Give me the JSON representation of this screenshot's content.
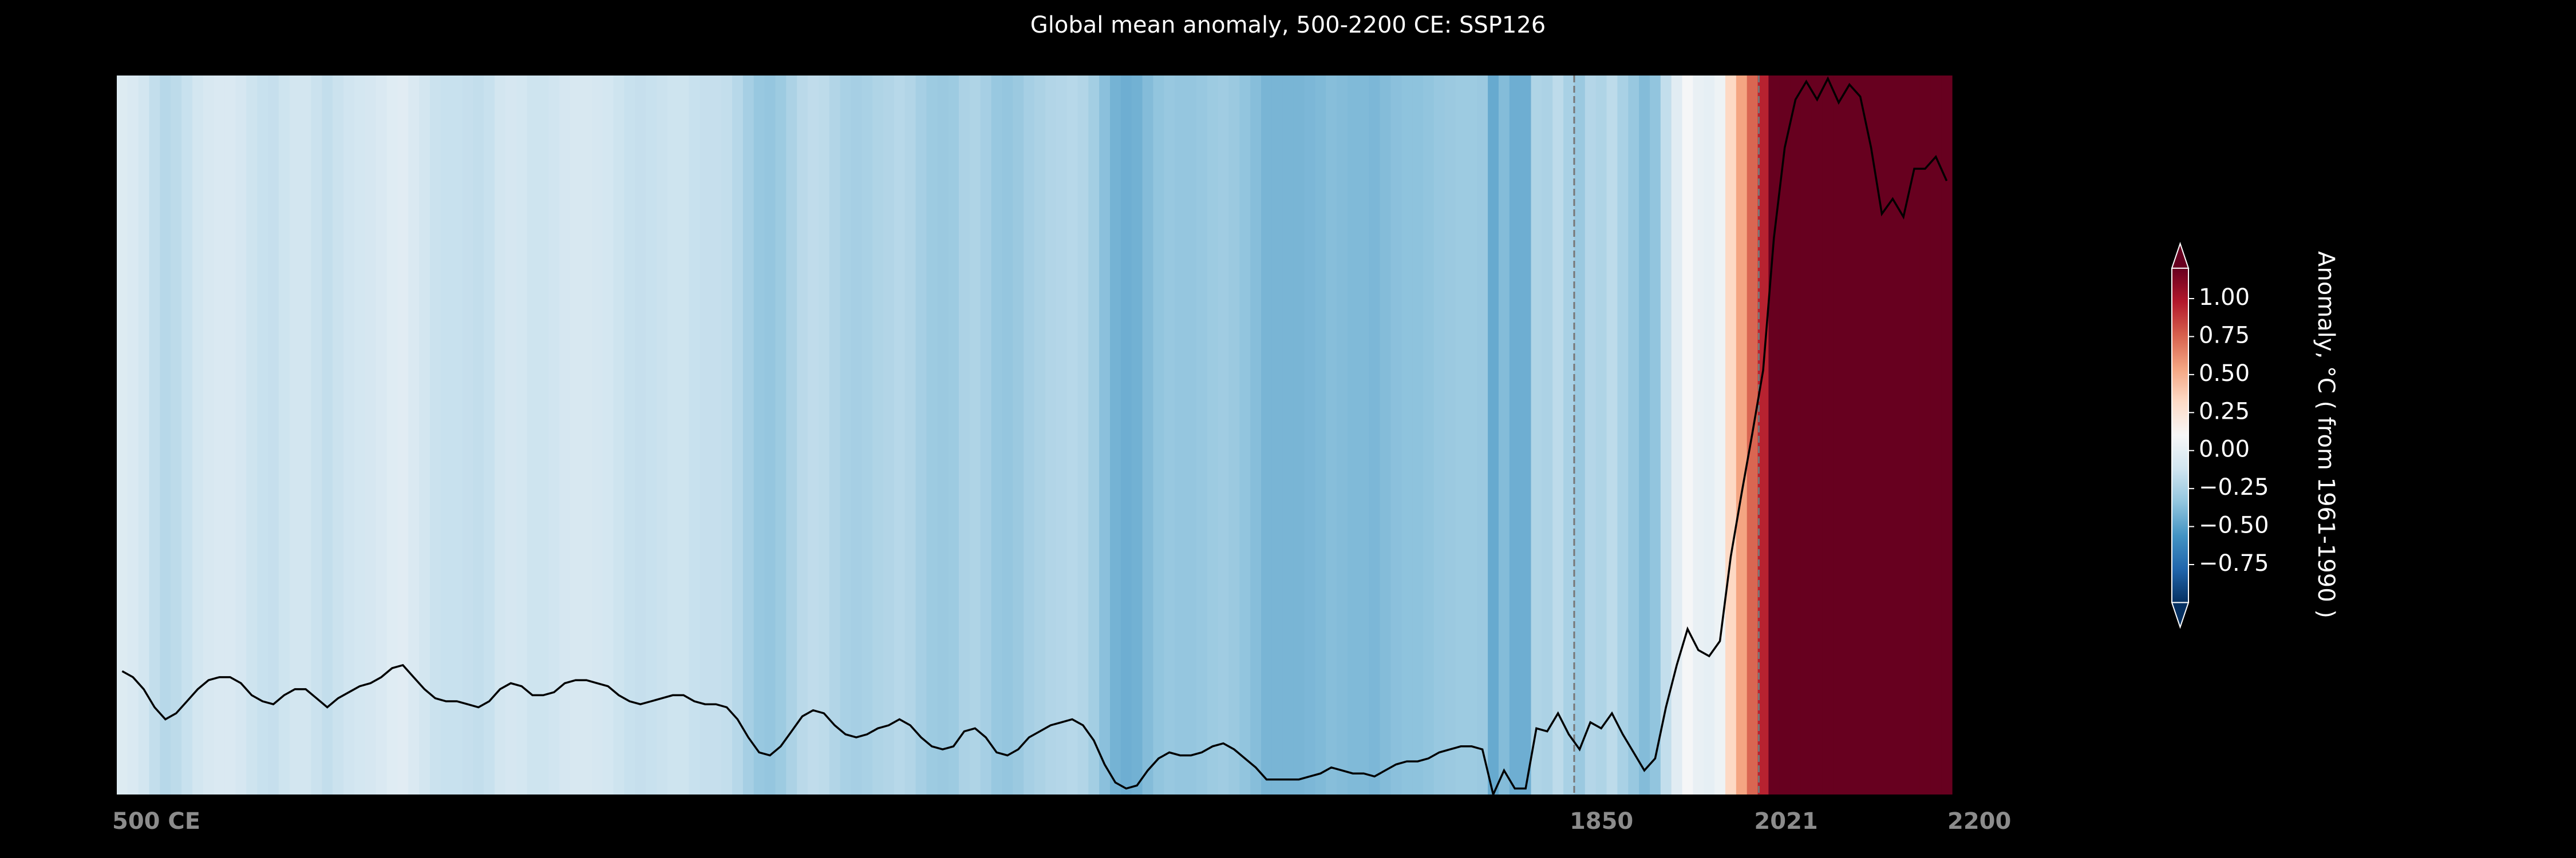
{
  "chart_data": {
    "type": "stripes-line",
    "title": "Global mean anomaly, 500-2200 CE: SSP126",
    "x": [
      505,
      515,
      525,
      535,
      545,
      555,
      565,
      575,
      585,
      595,
      605,
      615,
      625,
      635,
      645,
      655,
      665,
      675,
      685,
      695,
      705,
      715,
      725,
      735,
      745,
      755,
      765,
      775,
      785,
      795,
      805,
      815,
      825,
      835,
      845,
      855,
      865,
      875,
      885,
      895,
      905,
      915,
      925,
      935,
      945,
      955,
      965,
      975,
      985,
      995,
      1005,
      1015,
      1025,
      1035,
      1045,
      1055,
      1065,
      1075,
      1085,
      1095,
      1105,
      1115,
      1125,
      1135,
      1145,
      1155,
      1165,
      1175,
      1185,
      1195,
      1205,
      1215,
      1225,
      1235,
      1245,
      1255,
      1265,
      1275,
      1285,
      1295,
      1305,
      1315,
      1325,
      1335,
      1345,
      1355,
      1365,
      1375,
      1385,
      1395,
      1405,
      1415,
      1425,
      1435,
      1445,
      1455,
      1465,
      1475,
      1485,
      1495,
      1505,
      1515,
      1525,
      1535,
      1545,
      1555,
      1565,
      1575,
      1585,
      1595,
      1605,
      1615,
      1625,
      1635,
      1645,
      1655,
      1665,
      1675,
      1685,
      1695,
      1705,
      1715,
      1725,
      1735,
      1745,
      1755,
      1765,
      1775,
      1785,
      1795,
      1805,
      1815,
      1825,
      1835,
      1845,
      1855,
      1865,
      1875,
      1885,
      1895,
      1905,
      1915,
      1925,
      1935,
      1945,
      1955,
      1965,
      1975,
      1985,
      1995,
      2005,
      2015,
      2025,
      2035,
      2045,
      2055,
      2065,
      2075,
      2085,
      2095,
      2105,
      2115,
      2125,
      2135,
      2145,
      2155,
      2165,
      2175,
      2185,
      2195
    ],
    "values": [
      -0.05,
      -0.07,
      -0.11,
      -0.17,
      -0.21,
      -0.19,
      -0.15,
      -0.11,
      -0.08,
      -0.07,
      -0.07,
      -0.09,
      -0.13,
      -0.15,
      -0.16,
      -0.13,
      -0.11,
      -0.11,
      -0.14,
      -0.17,
      -0.14,
      -0.12,
      -0.1,
      -0.09,
      -0.07,
      -0.04,
      -0.03,
      -0.07,
      -0.11,
      -0.14,
      -0.15,
      -0.15,
      -0.16,
      -0.17,
      -0.15,
      -0.11,
      -0.09,
      -0.1,
      -0.13,
      -0.13,
      -0.12,
      -0.09,
      -0.08,
      -0.08,
      -0.09,
      -0.1,
      -0.13,
      -0.15,
      -0.16,
      -0.15,
      -0.14,
      -0.13,
      -0.13,
      -0.15,
      -0.16,
      -0.16,
      -0.17,
      -0.21,
      -0.27,
      -0.32,
      -0.33,
      -0.3,
      -0.25,
      -0.2,
      -0.18,
      -0.19,
      -0.23,
      -0.26,
      -0.27,
      -0.26,
      -0.24,
      -0.23,
      -0.21,
      -0.23,
      -0.27,
      -0.3,
      -0.31,
      -0.3,
      -0.25,
      -0.24,
      -0.27,
      -0.32,
      -0.33,
      -0.31,
      -0.27,
      -0.25,
      -0.23,
      -0.22,
      -0.21,
      -0.23,
      -0.28,
      -0.36,
      -0.42,
      -0.44,
      -0.43,
      -0.38,
      -0.34,
      -0.32,
      -0.33,
      -0.33,
      -0.32,
      -0.3,
      -0.29,
      -0.31,
      -0.34,
      -0.37,
      -0.41,
      -0.41,
      -0.41,
      -0.41,
      -0.4,
      -0.39,
      -0.37,
      -0.38,
      -0.39,
      -0.39,
      -0.4,
      -0.38,
      -0.36,
      -0.35,
      -0.35,
      -0.34,
      -0.32,
      -0.31,
      -0.3,
      -0.3,
      -0.31,
      -0.46,
      -0.38,
      -0.44,
      -0.44,
      -0.24,
      -0.25,
      -0.19,
      -0.26,
      -0.31,
      -0.22,
      -0.24,
      -0.19,
      -0.26,
      -0.32,
      -0.38,
      -0.34,
      -0.17,
      -0.03,
      0.09,
      0.02,
      0.0,
      0.05,
      0.33,
      0.54,
      0.74,
      0.95,
      1.39,
      1.69,
      1.85,
      1.91,
      1.85,
      1.92,
      1.84,
      1.9,
      1.86,
      1.69,
      1.47,
      1.52,
      1.46,
      1.62,
      1.62,
      1.66,
      1.58
    ],
    "line_color": "#000000",
    "xlim": [
      500,
      2200
    ],
    "xticks": [
      {
        "value": 500,
        "label": "500 CE"
      },
      1850,
      2021,
      2200
    ],
    "ylim": [
      -0.46,
      1.93
    ],
    "vlines": [
      1850,
      2021
    ],
    "colorbar": {
      "label": "Anomaly, °C ( from 1961-1990 )",
      "lim": [
        -1,
        1.2
      ],
      "ticks": [
        {
          "value": -0.75,
          "label": "−0.75"
        },
        {
          "value": -0.5,
          "label": "−0.50"
        },
        {
          "value": -0.25,
          "label": "−0.25"
        },
        {
          "value": 0,
          "label": "0.00"
        },
        0.25,
        {
          "value": 0.5,
          "label": "0.50"
        },
        0.75,
        {
          "value": 1,
          "label": "1.00"
        }
      ]
    }
  }
}
